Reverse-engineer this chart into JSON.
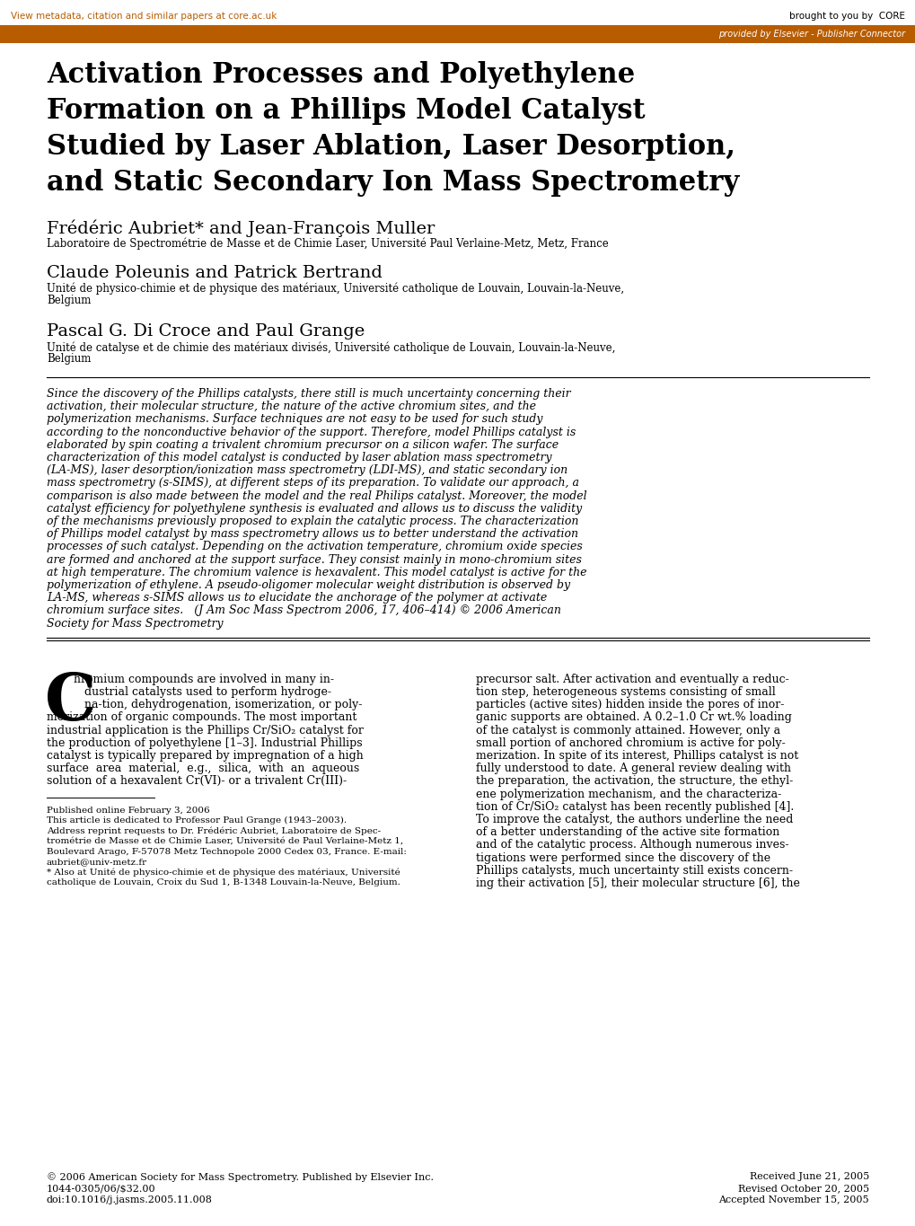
{
  "top_bar_color": "#b85c00",
  "top_link_text": "View metadata, citation and similar papers at core.ac.uk",
  "top_link_color": "#b85c00",
  "core_text": "brought to you by  CORE",
  "elsevier_text": "provided by Elsevier - Publisher Connector",
  "elsevier_text_color": "#ffffff",
  "title_lines": [
    "Activation Processes and Polyethylene",
    "Formation on a Phillips Model Catalyst",
    "Studied by Laser Ablation, Laser Desorption,",
    "and Static Secondary Ion Mass Spectrometry"
  ],
  "author1": "Frédéric Aubriet* and Jean-François Muller",
  "affil1": "Laboratoire de Spectrométrie de Masse et de Chimie Laser, Université Paul Verlaine-Metz, Metz, France",
  "author2": "Claude Poleunis and Patrick Bertrand",
  "affil2_line1": "Unité de physico-chimie et de physique des matériaux, Université catholique de Louvain, Louvain-la-Neuve,",
  "affil2_line2": "Belgium",
  "author3": "Pascal G. Di Croce and Paul Grange",
  "affil3_line1": "Unité de catalyse et de chimie des matériaux divisés, Université catholique de Louvain, Louvain-la-Neuve,",
  "affil3_line2": "Belgium",
  "abstract_lines": [
    "Since the discovery of the Phillips catalysts, there still is much uncertainty concerning their",
    "activation, their molecular structure, the nature of the active chromium sites, and the",
    "polymerization mechanisms. Surface techniques are not easy to be used for such study",
    "according to the nonconductive behavior of the support. Therefore, model Phillips catalyst is",
    "elaborated by spin coating a trivalent chromium precursor on a silicon wafer. The surface",
    "characterization of this model catalyst is conducted by laser ablation mass spectrometry",
    "(LA-MS), laser desorption/ionization mass spectrometry (LDI-MS), and static secondary ion",
    "mass spectrometry (s-SIMS), at different steps of its preparation. To validate our approach, a",
    "comparison is also made between the model and the real Philips catalyst. Moreover, the model",
    "catalyst efficiency for polyethylene synthesis is evaluated and allows us to discuss the validity",
    "of the mechanisms previously proposed to explain the catalytic process. The characterization",
    "of Phillips model catalyst by mass spectrometry allows us to better understand the activation",
    "processes of such catalyst. Depending on the activation temperature, chromium oxide species",
    "are formed and anchored at the support surface. They consist mainly in mono-chromium sites",
    "at high temperature. The chromium valence is hexavalent. This model catalyst is active for the",
    "polymerization of ethylene. A pseudo-oligomer molecular weight distribution is observed by",
    "LA-MS, whereas s-SIMS allows us to elucidate the anchorage of the polymer at activate",
    "chromium surface sites.   (J Am Soc Mass Spectrom 2006, 17, 406–414) © 2006 American",
    "Society for Mass Spectrometry"
  ],
  "col1_lines": [
    "hromium compounds are involved in many in-",
    "   dustrial catalysts used to perform hydroge-",
    "   na-tion, dehydrogenation, isomerization, or poly-",
    "merization of organic compounds. The most important",
    "industrial application is the Phillips Cr/SiO₂ catalyst for",
    "the production of polyethylene [1–3]. Industrial Phillips",
    "catalyst is typically prepared by impregnation of a high",
    "surface  area  material,  e.g.,  silica,  with  an  aqueous",
    "solution of a hexavalent Cr(VI)- or a trivalent Cr(III)-"
  ],
  "col2_lines": [
    "precursor salt. After activation and eventually a reduc-",
    "tion step, heterogeneous systems consisting of small",
    "particles (active sites) hidden inside the pores of inor-",
    "ganic supports are obtained. A 0.2–1.0 Cr wt.% loading",
    "of the catalyst is commonly attained. However, only a",
    "small portion of anchored chromium is active for poly-",
    "merization. In spite of its interest, Phillips catalyst is not",
    "fully understood to date. A general review dealing with",
    "the preparation, the activation, the structure, the ethyl-",
    "ene polymerization mechanism, and the characteriza-",
    "tion of Cr/SiO₂ catalyst has been recently published [4].",
    "To improve the catalyst, the authors underline the need",
    "of a better understanding of the active site formation",
    "and of the catalytic process. Although numerous inves-",
    "tigations were performed since the discovery of the",
    "Phillips catalysts, much uncertainty still exists concern-",
    "ing their activation [5], their molecular structure [6], the"
  ],
  "footnote1": "Published online February 3, 2006",
  "footnote2": "This article is dedicated to Professor Paul Grange (1943–2003).",
  "footnote3a": "Address reprint requests to Dr. Frédéric Aubriet, Laboratoire de Spec-",
  "footnote3b": "trométrie de Masse et de Chimie Laser, Université de Paul Verlaine-Metz 1,",
  "footnote3c": "Boulevard Arago, F-57078 Metz Technopole 2000 Cedex 03, France. E-mail:",
  "footnote3d": "aubriet@univ-metz.fr",
  "footnote4a": "* Also at Unité de physico-chimie et de physique des matériaux, Université",
  "footnote4b": "catholique de Louvain, Croix du Sud 1, B-1348 Louvain-la-Neuve, Belgium.",
  "copyright_left1": "© 2006 American Society for Mass Spectrometry. Published by Elsevier Inc.",
  "copyright_left2": "1044-0305/06/$32.00",
  "copyright_left3": "doi:10.1016/j.jasms.2005.11.008",
  "copyright_right1": "Received June 21, 2005",
  "copyright_right2": "Revised October 20, 2005",
  "copyright_right3": "Accepted November 15, 2005"
}
